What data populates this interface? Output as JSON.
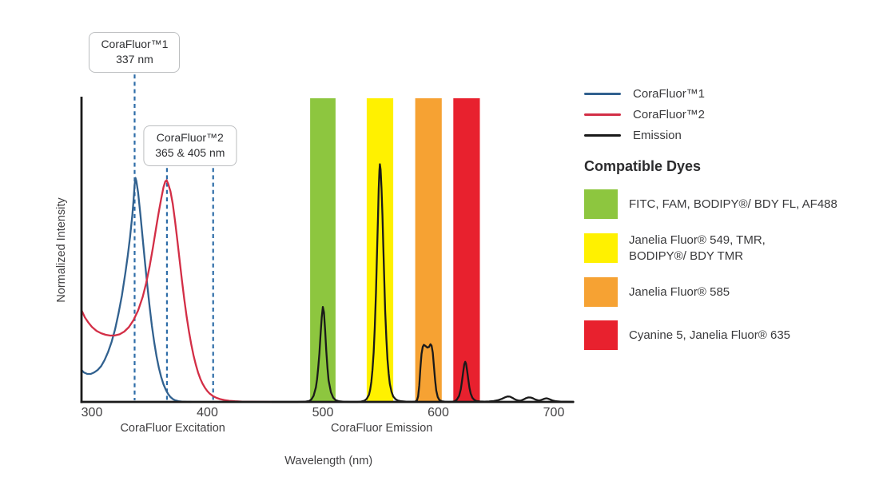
{
  "chart": {
    "y_axis_label": "Normalized Intensity",
    "x_axis_label": "Wavelength (nm)",
    "region_labels": [
      {
        "label": "CoraFluor Excitation",
        "center_nm": 370
      },
      {
        "label": "CoraFluor Emission",
        "center_nm": 551
      }
    ]
  },
  "chart_data": {
    "type": "line",
    "title": "",
    "xlabel": "Wavelength (nm)",
    "ylabel": "Normalized Intensity",
    "xlim": [
      291,
      717
    ],
    "ylim": [
      0,
      1.0
    ],
    "x_ticks": [
      300,
      400,
      500,
      600,
      700
    ],
    "grid": false,
    "legend_position": "right",
    "annotations": {
      "dashed_line_color": "#2e6da8",
      "dashed_lines_nm": [
        337,
        365,
        405
      ],
      "callouts": [
        {
          "line1": "CoraFluor™1",
          "line2": "337 nm",
          "anchor_nm": [
            337
          ]
        },
        {
          "line1": "CoraFluor™2",
          "line2": "365 & 405 nm",
          "anchor_nm": [
            365,
            405
          ]
        }
      ]
    },
    "bands": [
      {
        "name": "FITC, FAM, BODIPY®/ BDY FL, AF488",
        "nm_range": [
          489,
          511
        ],
        "color": "#8dc63f"
      },
      {
        "name": "Janelia Fluor® 549, TMR, BODIPY®/ BDY TMR",
        "nm_range": [
          538,
          561
        ],
        "color": "#fff100"
      },
      {
        "name": "Janelia Fluor® 585",
        "nm_range": [
          580,
          603
        ],
        "color": "#f6a233"
      },
      {
        "name": "Cyanine 5, Janelia Fluor® 635",
        "nm_range": [
          613,
          636
        ],
        "color": "#e8212e"
      }
    ],
    "series": [
      {
        "name": "CoraFluor™1",
        "color": "#31618f",
        "points": [
          [
            291,
            0.105
          ],
          [
            293,
            0.097
          ],
          [
            296,
            0.092
          ],
          [
            299,
            0.092
          ],
          [
            302,
            0.097
          ],
          [
            305,
            0.105
          ],
          [
            308,
            0.118
          ],
          [
            311,
            0.138
          ],
          [
            314,
            0.164
          ],
          [
            317,
            0.197
          ],
          [
            320,
            0.238
          ],
          [
            323,
            0.29
          ],
          [
            326,
            0.351
          ],
          [
            329,
            0.425
          ],
          [
            331,
            0.48
          ],
          [
            333,
            0.542
          ],
          [
            335,
            0.615
          ],
          [
            336,
            0.66
          ],
          [
            337,
            0.715
          ],
          [
            337.7,
            0.738
          ],
          [
            338.5,
            0.728
          ],
          [
            340,
            0.69
          ],
          [
            342,
            0.617
          ],
          [
            344,
            0.537
          ],
          [
            346,
            0.458
          ],
          [
            348,
            0.382
          ],
          [
            350,
            0.312
          ],
          [
            352,
            0.25
          ],
          [
            354,
            0.196
          ],
          [
            356,
            0.15
          ],
          [
            358,
            0.112
          ],
          [
            360,
            0.082
          ],
          [
            362,
            0.058
          ],
          [
            364,
            0.04
          ],
          [
            366,
            0.026
          ],
          [
            368,
            0.016
          ],
          [
            370,
            0.0095
          ],
          [
            372,
            0.0055
          ],
          [
            375,
            0.0025
          ],
          [
            378,
            0.001
          ],
          [
            382,
            0.0003
          ],
          [
            386,
            0
          ]
        ]
      },
      {
        "name": "CoraFluor™2",
        "color": "#d32e46",
        "points": [
          [
            291,
            0.302
          ],
          [
            294,
            0.278
          ],
          [
            297,
            0.261
          ],
          [
            300,
            0.247
          ],
          [
            304,
            0.234
          ],
          [
            308,
            0.226
          ],
          [
            312,
            0.221
          ],
          [
            316,
            0.2185
          ],
          [
            320,
            0.219
          ],
          [
            324,
            0.2225
          ],
          [
            328,
            0.2315
          ],
          [
            332,
            0.246
          ],
          [
            336,
            0.269
          ],
          [
            340,
            0.301
          ],
          [
            344,
            0.346
          ],
          [
            347,
            0.391
          ],
          [
            350,
            0.447
          ],
          [
            353,
            0.512
          ],
          [
            356,
            0.582
          ],
          [
            358,
            0.627
          ],
          [
            360,
            0.669
          ],
          [
            362,
            0.707
          ],
          [
            363.5,
            0.726
          ],
          [
            364.7,
            0.73
          ],
          [
            366,
            0.719
          ],
          [
            368,
            0.694
          ],
          [
            370,
            0.652
          ],
          [
            372,
            0.597
          ],
          [
            374,
            0.533
          ],
          [
            376,
            0.466
          ],
          [
            378,
            0.4
          ],
          [
            380,
            0.338
          ],
          [
            382,
            0.282
          ],
          [
            384,
            0.233
          ],
          [
            386,
            0.19
          ],
          [
            388,
            0.153
          ],
          [
            390,
            0.122
          ],
          [
            392,
            0.0965
          ],
          [
            394,
            0.0755
          ],
          [
            396,
            0.059
          ],
          [
            398,
            0.046
          ],
          [
            400,
            0.0355
          ],
          [
            402,
            0.0275
          ],
          [
            405,
            0.019
          ],
          [
            408,
            0.0132
          ],
          [
            411,
            0.0092
          ],
          [
            415,
            0.0057
          ],
          [
            419,
            0.0036
          ],
          [
            424,
            0.002
          ],
          [
            430,
            0.001
          ],
          [
            437,
            0.0005
          ],
          [
            446,
            0.0002
          ],
          [
            456,
            0
          ]
        ]
      },
      {
        "name": "Emission",
        "color": "#1a1a1a",
        "points": [
          [
            456,
            0
          ],
          [
            468,
            0
          ],
          [
            478,
            0
          ],
          [
            485,
            0.001
          ],
          [
            488,
            0.003
          ],
          [
            490,
            0.008
          ],
          [
            492,
            0.02
          ],
          [
            494,
            0.048
          ],
          [
            495,
            0.075
          ],
          [
            496,
            0.112
          ],
          [
            497,
            0.16
          ],
          [
            498,
            0.22
          ],
          [
            499,
            0.278
          ],
          [
            500,
            0.313
          ],
          [
            501,
            0.295
          ],
          [
            502,
            0.235
          ],
          [
            503,
            0.168
          ],
          [
            504,
            0.112
          ],
          [
            505,
            0.071
          ],
          [
            507,
            0.032
          ],
          [
            509,
            0.014
          ],
          [
            511,
            0.006
          ],
          [
            514,
            0.002
          ],
          [
            518,
            0.0006
          ],
          [
            524,
            0
          ],
          [
            530,
            0
          ],
          [
            533,
            0.001
          ],
          [
            536,
            0.004
          ],
          [
            538,
            0.01
          ],
          [
            540,
            0.024
          ],
          [
            541,
            0.04
          ],
          [
            542,
            0.066
          ],
          [
            543,
            0.105
          ],
          [
            544,
            0.163
          ],
          [
            545,
            0.245
          ],
          [
            546,
            0.36
          ],
          [
            547,
            0.5
          ],
          [
            547.8,
            0.615
          ],
          [
            548.4,
            0.7
          ],
          [
            549,
            0.762
          ],
          [
            549.4,
            0.783
          ],
          [
            550,
            0.765
          ],
          [
            550.8,
            0.705
          ],
          [
            551.6,
            0.615
          ],
          [
            552.4,
            0.51
          ],
          [
            553.2,
            0.4
          ],
          [
            554,
            0.3
          ],
          [
            555,
            0.208
          ],
          [
            556,
            0.14
          ],
          [
            557,
            0.093
          ],
          [
            558,
            0.06
          ],
          [
            559.5,
            0.033
          ],
          [
            561,
            0.018
          ],
          [
            563,
            0.009
          ],
          [
            565,
            0.0045
          ],
          [
            568,
            0.002
          ],
          [
            572,
            0.0008
          ],
          [
            577,
            0.0002
          ],
          [
            580,
            0.001
          ],
          [
            581.5,
            0.005
          ],
          [
            582.5,
            0.018
          ],
          [
            583.5,
            0.055
          ],
          [
            584.5,
            0.112
          ],
          [
            585.5,
            0.158
          ],
          [
            586.5,
            0.181
          ],
          [
            587.5,
            0.188
          ],
          [
            589,
            0.184
          ],
          [
            590.5,
            0.179
          ],
          [
            592,
            0.181
          ],
          [
            593.2,
            0.19
          ],
          [
            594.2,
            0.185
          ],
          [
            595.2,
            0.162
          ],
          [
            596.2,
            0.118
          ],
          [
            597.2,
            0.072
          ],
          [
            598.2,
            0.038
          ],
          [
            599.5,
            0.016
          ],
          [
            601,
            0.006
          ],
          [
            603,
            0.002
          ],
          [
            606,
            0.0005
          ],
          [
            609,
            0
          ],
          [
            612,
            0.0005
          ],
          [
            614,
            0.002
          ],
          [
            616,
            0.007
          ],
          [
            618,
            0.02
          ],
          [
            619.5,
            0.042
          ],
          [
            620.5,
            0.068
          ],
          [
            621.5,
            0.098
          ],
          [
            622.5,
            0.124
          ],
          [
            623.3,
            0.132
          ],
          [
            624,
            0.126
          ],
          [
            625,
            0.102
          ],
          [
            626,
            0.072
          ],
          [
            627,
            0.046
          ],
          [
            628,
            0.028
          ],
          [
            629.5,
            0.014
          ],
          [
            631,
            0.007
          ],
          [
            633,
            0.003
          ],
          [
            636,
            0.0015
          ],
          [
            640,
            0.001
          ],
          [
            644,
            0.0015
          ],
          [
            648,
            0.003
          ],
          [
            652,
            0.006
          ],
          [
            655,
            0.01
          ],
          [
            658,
            0.0155
          ],
          [
            660,
            0.018
          ],
          [
            662,
            0.0175
          ],
          [
            664,
            0.0138
          ],
          [
            666,
            0.0092
          ],
          [
            668,
            0.0058
          ],
          [
            670,
            0.0042
          ],
          [
            672,
            0.005
          ],
          [
            674,
            0.0085
          ],
          [
            676,
            0.0125
          ],
          [
            678,
            0.0147
          ],
          [
            680,
            0.0145
          ],
          [
            682,
            0.0118
          ],
          [
            684,
            0.008
          ],
          [
            686,
            0.0056
          ],
          [
            688,
            0.005
          ],
          [
            690,
            0.0075
          ],
          [
            692,
            0.0105
          ],
          [
            693.5,
            0.0118
          ],
          [
            695,
            0.0108
          ],
          [
            697,
            0.0075
          ],
          [
            699,
            0.0045
          ],
          [
            702,
            0.0022
          ],
          [
            706,
            0.001
          ],
          [
            711,
            0.0004
          ],
          [
            717,
            0
          ]
        ]
      }
    ]
  },
  "legend": {
    "series": [
      {
        "label": "CoraFluor™1",
        "color": "#31618f"
      },
      {
        "label": "CoraFluor™2",
        "color": "#d32e46"
      },
      {
        "label": "Emission",
        "color": "#1a1a1a"
      }
    ],
    "dyes_heading": "Compatible Dyes",
    "dyes": [
      {
        "label": "FITC, FAM, BODIPY®/ BDY FL, AF488",
        "color": "#8dc63f"
      },
      {
        "label": "Janelia Fluor® 549, TMR,\nBODIPY®/ BDY TMR",
        "color": "#fff100"
      },
      {
        "label": "Janelia Fluor® 585",
        "color": "#f6a233"
      },
      {
        "label": "Cyanine 5, Janelia Fluor® 635",
        "color": "#e8212e"
      }
    ]
  }
}
